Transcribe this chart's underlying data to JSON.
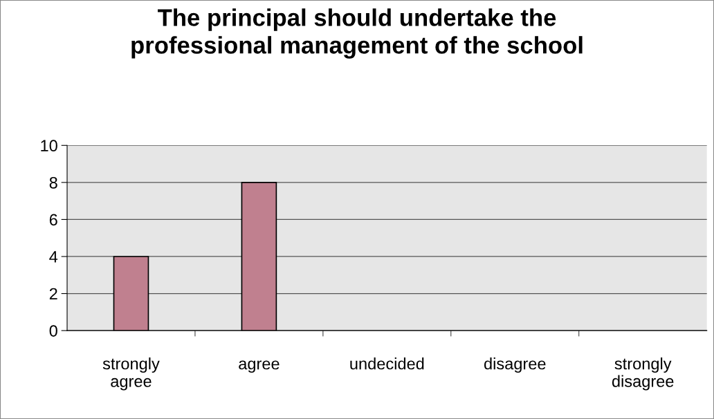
{
  "chart_data": {
    "type": "bar",
    "title": "The principal should undertake the\nprofessional management of the school",
    "categories": [
      "strongly agree",
      "agree",
      "undecided",
      "disagree",
      "strongly disagree"
    ],
    "values": [
      4,
      8,
      0,
      0,
      0
    ],
    "color": "#c0808f",
    "ylim": [
      0,
      10
    ],
    "yticks": [
      0,
      2,
      4,
      6,
      8,
      10
    ],
    "grid": "y",
    "legend": false
  }
}
